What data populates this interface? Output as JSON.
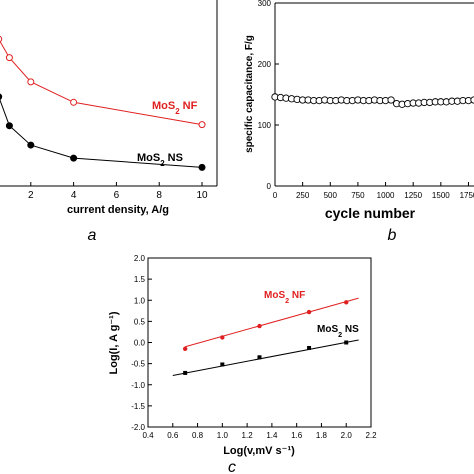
{
  "chart_data": [
    {
      "panel": "a",
      "type": "line",
      "xlabel": "current density, A/g",
      "ylabel": "",
      "x_ticks": [
        2,
        4,
        6,
        8,
        10
      ],
      "xlim": [
        0,
        10.7
      ],
      "ylim": [
        0,
        500
      ],
      "series": [
        {
          "name_prefix": "MoS",
          "name_sub": "2",
          "name_suffix": " NF",
          "color": "#e02020",
          "marker": "open-circle",
          "x": [
            0.5,
            1,
            2,
            4,
            10
          ],
          "y": [
            395,
            345,
            280,
            225,
            165
          ]
        },
        {
          "name_prefix": "MoS",
          "name_sub": "2",
          "name_suffix": " NS",
          "color": "#000000",
          "marker": "filled-circle",
          "x": [
            0.5,
            1,
            2,
            4,
            10
          ],
          "y": [
            240,
            162,
            110,
            75,
            50
          ]
        }
      ]
    },
    {
      "panel": "b",
      "type": "scatter",
      "xlabel": "cycle number",
      "ylabel": "specific capacitance, F/g",
      "x_ticks": [
        0,
        250,
        500,
        750,
        1000,
        1250,
        1500,
        1750
      ],
      "y_ticks": [
        0,
        100,
        200,
        300
      ],
      "xlim": [
        0,
        1800
      ],
      "ylim": [
        0,
        300
      ],
      "marker": "open-circle",
      "x": [
        0,
        50,
        100,
        150,
        200,
        250,
        300,
        350,
        400,
        450,
        500,
        550,
        600,
        650,
        700,
        750,
        800,
        850,
        900,
        950,
        1000,
        1050,
        1100,
        1150,
        1200,
        1250,
        1300,
        1350,
        1400,
        1450,
        1500,
        1550,
        1600,
        1650,
        1700,
        1750,
        1800
      ],
      "y": [
        146,
        145,
        144,
        143,
        142,
        141,
        141,
        140,
        140,
        141,
        140,
        140,
        141,
        140,
        140,
        141,
        140,
        140,
        141,
        140,
        140,
        141,
        135,
        134,
        135,
        136,
        136,
        137,
        137,
        138,
        138,
        138,
        139,
        139,
        140,
        140,
        141
      ]
    },
    {
      "panel": "c",
      "type": "scatter",
      "xlabel": "Log(v,mV s⁻¹)",
      "ylabel": "Log(I, A g⁻¹)",
      "x_ticks": [
        "0.4",
        "0.6",
        "0.8",
        "1.0",
        "1.2",
        "1.4",
        "1.6",
        "1.8",
        "2.0",
        "2.2"
      ],
      "y_ticks": [
        "-2.0",
        "-1.5",
        "-1.0",
        "-0.5",
        "0.0",
        "0.5",
        "1.0",
        "1.5",
        "2.0"
      ],
      "xlim": [
        0.4,
        2.2
      ],
      "ylim": [
        -2.0,
        2.0
      ],
      "series": [
        {
          "name_prefix": "MoS",
          "name_sub": "2",
          "name_suffix": " NF",
          "color": "#e02020",
          "marker": "filled-circle",
          "x": [
            0.7,
            1.0,
            1.3,
            1.7,
            2.0
          ],
          "y": [
            -0.15,
            0.12,
            0.39,
            0.72,
            0.95
          ],
          "fit_x": [
            0.7,
            2.1
          ],
          "fit_y": [
            -0.1,
            1.05
          ]
        },
        {
          "name_prefix": "MoS",
          "name_sub": "2",
          "name_suffix": " NS",
          "color": "#000000",
          "marker": "filled-square",
          "x": [
            0.7,
            1.0,
            1.3,
            1.7,
            2.0
          ],
          "y": [
            -0.72,
            -0.52,
            -0.35,
            -0.13,
            0.0
          ],
          "fit_x": [
            0.6,
            2.1
          ],
          "fit_y": [
            -0.78,
            0.06
          ]
        }
      ]
    }
  ],
  "panel_labels": {
    "a": "a",
    "b": "b",
    "c": "c"
  }
}
